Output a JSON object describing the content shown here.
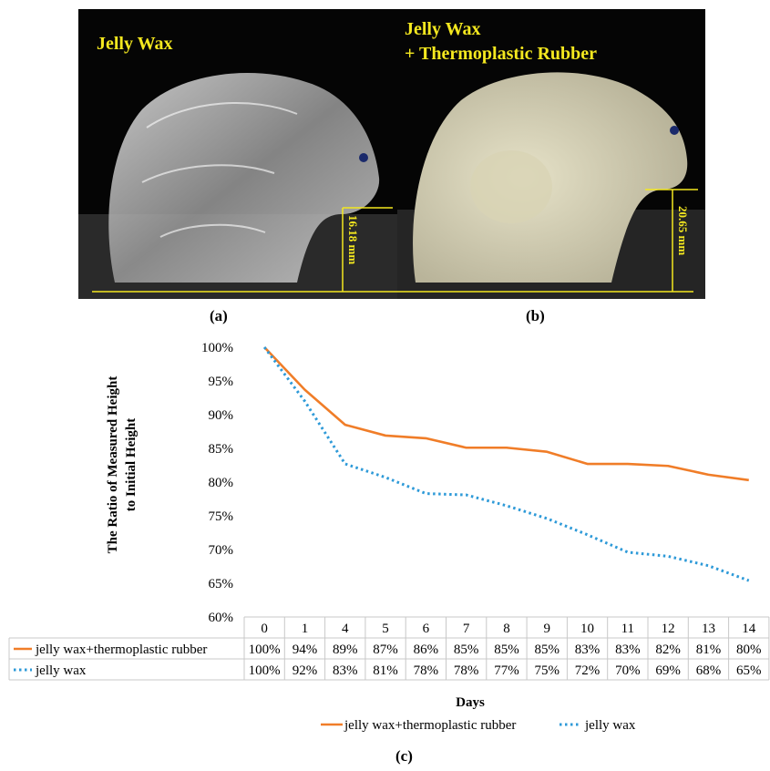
{
  "panels": {
    "a": {
      "title": "Jelly Wax",
      "measurement": "16.18 mm",
      "caption": "(a)"
    },
    "b": {
      "title_line1": "Jelly Wax",
      "title_line2": "+ Thermoplastic Rubber",
      "measurement": "20.65 mm",
      "caption": "(b)"
    },
    "c": {
      "caption": "(c)"
    }
  },
  "colors": {
    "photo_annotation": "#f4e81f",
    "series_rubber": "#f07d28",
    "series_wax": "#2e9ad8"
  },
  "chart_data": {
    "type": "line",
    "title": "",
    "xlabel": "Days",
    "ylabel_line1": "The Ratio of Measured Height",
    "ylabel_line2": "to Initial Height",
    "categories": [
      "0",
      "1",
      "4",
      "5",
      "6",
      "7",
      "8",
      "9",
      "10",
      "11",
      "12",
      "13",
      "14"
    ],
    "ylim": [
      0.6,
      1.0
    ],
    "y_ticks": [
      "60%",
      "65%",
      "70%",
      "75%",
      "80%",
      "85%",
      "90%",
      "95%",
      "100%"
    ],
    "grid": false,
    "legend_position": "bottom",
    "series": [
      {
        "name": "jelly wax+thermoplastic rubber",
        "style": "solid",
        "values": [
          1.0,
          0.937,
          0.885,
          0.869,
          0.865,
          0.851,
          0.851,
          0.845,
          0.827,
          0.827,
          0.824,
          0.811,
          0.803
        ],
        "labels": [
          "100%",
          "94%",
          "89%",
          "87%",
          "86%",
          "85%",
          "85%",
          "85%",
          "83%",
          "83%",
          "82%",
          "81%",
          "80%"
        ]
      },
      {
        "name": "jelly wax",
        "style": "dotted",
        "values": [
          1.0,
          0.92,
          0.827,
          0.807,
          0.783,
          0.781,
          0.765,
          0.746,
          0.722,
          0.696,
          0.69,
          0.676,
          0.654
        ],
        "labels": [
          "100%",
          "92%",
          "83%",
          "81%",
          "78%",
          "78%",
          "77%",
          "75%",
          "72%",
          "70%",
          "69%",
          "68%",
          "65%"
        ]
      }
    ]
  }
}
